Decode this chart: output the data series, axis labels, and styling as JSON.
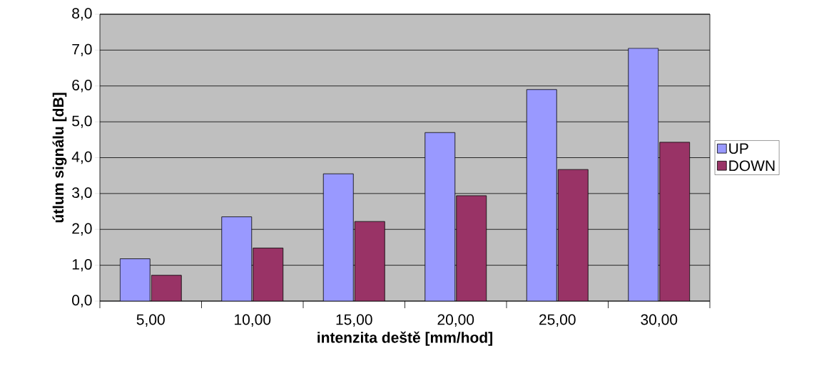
{
  "chart_data": {
    "type": "bar",
    "xlabel": "intenzita deště [mm/hod]",
    "ylabel": "útlum signálu [dB]",
    "categories": [
      "5,00",
      "10,00",
      "15,00",
      "20,00",
      "25,00",
      "30,00"
    ],
    "series": [
      {
        "name": "UP",
        "color": "#9999ff",
        "values": [
          1.18,
          2.35,
          3.55,
          4.7,
          5.9,
          7.05
        ]
      },
      {
        "name": "DOWN",
        "color": "#993366",
        "values": [
          0.72,
          1.48,
          2.22,
          2.94,
          3.67,
          4.43
        ]
      }
    ],
    "ylim": [
      0,
      8
    ],
    "yticks": [
      {
        "value": 0,
        "label": "0,0"
      },
      {
        "value": 1,
        "label": "1,0"
      },
      {
        "value": 2,
        "label": "2,0"
      },
      {
        "value": 3,
        "label": "3,0"
      },
      {
        "value": 4,
        "label": "4,0"
      },
      {
        "value": 5,
        "label": "5,0"
      },
      {
        "value": 6,
        "label": "6,0"
      },
      {
        "value": 7,
        "label": "7,0"
      },
      {
        "value": 8,
        "label": "8,0"
      }
    ],
    "grid": "y",
    "legend": "right"
  }
}
